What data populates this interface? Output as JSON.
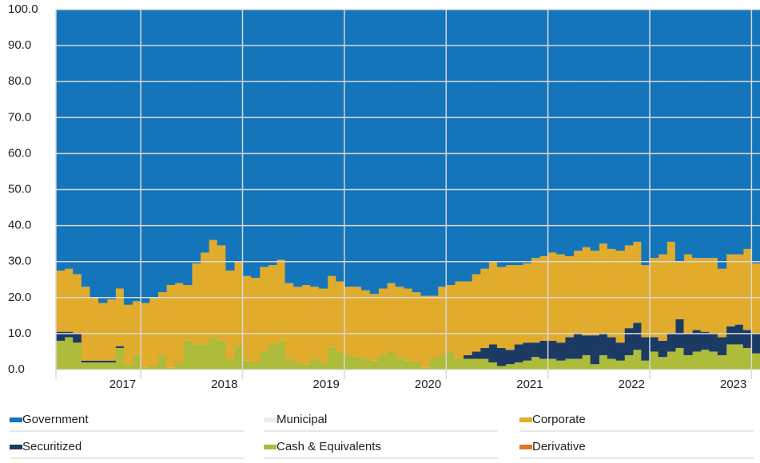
{
  "chart_data": {
    "type": "bar",
    "stacked": true,
    "categories": [
      null,
      null,
      null,
      null,
      null,
      null,
      null,
      null,
      null,
      null,
      "2017",
      null,
      null,
      null,
      null,
      null,
      null,
      null,
      null,
      null,
      null,
      null,
      "2018",
      null,
      null,
      null,
      null,
      null,
      null,
      null,
      null,
      null,
      null,
      null,
      "2019",
      null,
      null,
      null,
      null,
      null,
      null,
      null,
      null,
      null,
      null,
      null,
      "2020",
      null,
      null,
      null,
      null,
      null,
      null,
      null,
      null,
      null,
      null,
      null,
      "2021",
      null,
      null,
      null,
      null,
      null,
      null,
      null,
      null,
      null,
      null,
      null,
      "2022",
      null,
      null,
      null,
      null,
      null,
      null,
      null,
      null,
      null,
      null,
      null,
      "2023"
    ],
    "series": [
      {
        "name": "Government",
        "color": "#1475bb",
        "values": [
          72.5,
          72,
          73.5,
          77,
          80,
          81.5,
          80.5,
          77.5,
          82,
          81,
          81.5,
          80,
          78.5,
          76.5,
          76,
          76.5,
          70.5,
          67.5,
          64,
          65.5,
          72.5,
          70,
          74,
          74.5,
          71.5,
          71,
          69.5,
          76,
          77,
          76.5,
          77,
          77.5,
          74,
          75.5,
          77,
          77,
          78,
          79,
          77.5,
          76,
          77,
          77.5,
          78.5,
          79.5,
          79.5,
          77,
          76.5,
          75.5,
          75.5,
          73.5,
          72,
          70,
          71.5,
          71,
          71,
          70.5,
          69,
          68.5,
          67.5,
          68,
          68.5,
          67,
          66,
          67,
          65,
          66.5,
          67,
          65.5,
          64.5,
          71,
          69,
          68,
          64.5,
          70,
          68,
          69,
          69,
          69,
          72,
          68,
          68,
          66.5,
          70.5
        ]
      },
      {
        "name": "Municipal",
        "color": "#efece2",
        "values": [
          0,
          0,
          0,
          0,
          0,
          0,
          0,
          0,
          0,
          0,
          0,
          0,
          0,
          0,
          0,
          0,
          0,
          0,
          0,
          0,
          0,
          0,
          0,
          0,
          0,
          0,
          0,
          0,
          0,
          0,
          0,
          0,
          0,
          0,
          0,
          0,
          0,
          0,
          0,
          0,
          0,
          0,
          0,
          0,
          0,
          0,
          0,
          0,
          0,
          0,
          0,
          0,
          0,
          0,
          0,
          0,
          0,
          0,
          0,
          0,
          0,
          0,
          0,
          0,
          0,
          0,
          0,
          0,
          0,
          0,
          0,
          0,
          0,
          0,
          0,
          0,
          0,
          0,
          0,
          0,
          0,
          0,
          0
        ]
      },
      {
        "name": "Corporate",
        "color": "#e1ab2c",
        "values": [
          17,
          17.5,
          16.5,
          20.5,
          17.5,
          16,
          17,
          16,
          16.5,
          15,
          18,
          19,
          17.5,
          23,
          22,
          15.5,
          22.5,
          25.5,
          27,
          26.5,
          24.5,
          23.5,
          23.5,
          23.5,
          23.5,
          22,
          22.5,
          21,
          21,
          22,
          20,
          20.5,
          20,
          19.5,
          19,
          19.5,
          19,
          18.5,
          18.5,
          19,
          19.5,
          20,
          19.5,
          20,
          17.5,
          19,
          18.5,
          21.5,
          20.5,
          21.5,
          22,
          23,
          22.5,
          23.5,
          22,
          22,
          23.5,
          23.5,
          24.5,
          24.5,
          22.5,
          23,
          24.5,
          23.5,
          25,
          24.5,
          25.5,
          23,
          22.5,
          20,
          22,
          24,
          25.5,
          16,
          22,
          20,
          20.5,
          21,
          19,
          20,
          19.5,
          22.5,
          19.5
        ]
      },
      {
        "name": "Securitized",
        "color": "#1b3a64",
        "values": [
          2.5,
          1.5,
          2.5,
          0.5,
          0.5,
          0.5,
          0.5,
          0.5,
          0,
          0,
          0,
          0,
          0,
          0,
          0,
          0,
          0,
          0,
          0,
          0,
          0,
          0,
          0,
          0,
          0,
          0,
          0,
          0,
          0,
          0,
          0,
          0,
          0,
          0,
          0,
          0,
          0,
          0,
          0,
          0,
          0,
          0,
          0,
          0,
          0,
          0,
          0,
          0,
          1,
          2,
          3,
          5,
          5,
          4,
          5,
          5,
          4,
          5,
          5,
          5,
          6,
          7,
          5.5,
          8,
          6,
          6,
          5,
          7.5,
          7.5,
          6.5,
          4,
          4.5,
          5,
          8,
          6,
          6,
          5,
          5,
          5,
          5,
          5.5,
          5,
          5.5
        ]
      },
      {
        "name": "Cash & Equivalents",
        "color": "#adbc3a",
        "values": [
          8,
          9,
          7.5,
          2,
          2,
          2,
          2,
          6,
          1.5,
          4,
          0.5,
          1,
          4,
          0.5,
          2,
          8,
          7,
          7,
          9,
          8,
          3,
          6.5,
          2.5,
          2,
          5,
          7,
          8,
          3,
          2,
          1.5,
          3,
          2,
          6,
          5,
          4,
          3.5,
          3,
          2.5,
          4,
          5,
          3.5,
          2.5,
          2,
          0.5,
          3,
          4,
          5,
          3,
          3,
          3,
          3,
          2,
          1,
          1.5,
          2,
          2.5,
          3.5,
          3,
          3,
          2.5,
          3,
          3,
          4,
          1.5,
          4,
          3,
          2.5,
          4,
          5.5,
          2.5,
          5,
          3.5,
          5,
          6,
          4,
          5,
          5.5,
          5,
          4,
          7,
          7,
          6,
          4.5
        ]
      },
      {
        "name": "Derivative",
        "color": "#e0742b",
        "values": [
          0,
          0,
          0,
          0,
          0,
          0,
          0,
          0,
          0,
          0,
          0,
          0,
          0,
          0,
          0,
          0,
          0,
          0,
          0,
          0,
          0,
          0,
          0,
          0,
          0,
          0,
          0,
          0,
          0,
          0,
          0,
          0,
          0,
          0,
          0,
          0,
          0,
          0,
          0,
          0,
          0,
          0,
          0,
          0,
          0,
          0,
          0,
          0,
          0,
          0,
          0,
          0,
          0,
          0,
          0,
          0,
          0,
          0,
          0,
          0,
          0,
          0,
          0,
          0,
          0,
          0,
          0,
          0,
          0,
          0,
          0,
          0,
          0,
          0,
          0,
          0,
          0,
          0,
          0,
          0,
          0,
          0,
          0
        ]
      }
    ],
    "ylim": [
      0,
      100
    ],
    "yticks": [
      {
        "value": 0,
        "label": "0.0"
      },
      {
        "value": 10,
        "label": "10.0"
      },
      {
        "value": 20,
        "label": "20.0"
      },
      {
        "value": 30,
        "label": "30.0"
      },
      {
        "value": 40,
        "label": "40.0"
      },
      {
        "value": 50,
        "label": "50.0"
      },
      {
        "value": 60,
        "label": "60.0"
      },
      {
        "value": 70,
        "label": "70.0"
      },
      {
        "value": 80,
        "label": "80.0"
      },
      {
        "value": 90,
        "label": "90.0"
      },
      {
        "value": 100,
        "label": "100.0"
      }
    ],
    "grid": true,
    "legend": "bottom"
  }
}
